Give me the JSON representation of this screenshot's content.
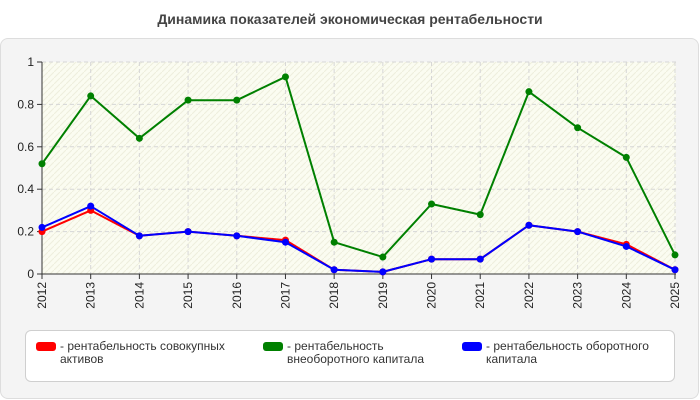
{
  "chart_data": {
    "type": "line",
    "title": "Динамика показателей экономическая рентабельности",
    "xlabel": "",
    "ylabel": "",
    "categories": [
      "2012",
      "2013",
      "2014",
      "2015",
      "2016",
      "2017",
      "2018",
      "2019",
      "2020",
      "2021",
      "2022",
      "2023",
      "2024",
      "2025"
    ],
    "ylim": [
      0,
      1
    ],
    "yticks": [
      "0",
      "0.2",
      "0.4",
      "0.6",
      "0.8",
      "1"
    ],
    "grid": true,
    "legend_position": "bottom",
    "series": [
      {
        "name": "рентабельность совокупных активов",
        "color": "#ff0000",
        "values": [
          0.2,
          0.3,
          0.18,
          0.2,
          0.18,
          0.16,
          0.02,
          0.01,
          0.07,
          0.07,
          0.23,
          0.2,
          0.14,
          0.02
        ]
      },
      {
        "name": "рентабельность внеоборотного капитала",
        "color": "#008000",
        "values": [
          0.52,
          0.84,
          0.64,
          0.82,
          0.82,
          0.93,
          0.15,
          0.08,
          0.33,
          0.28,
          0.86,
          0.69,
          0.55,
          0.09
        ]
      },
      {
        "name": "рентабельность оборотного капитала",
        "color": "#0000ff",
        "values": [
          0.22,
          0.32,
          0.18,
          0.2,
          0.18,
          0.15,
          0.02,
          0.01,
          0.07,
          0.07,
          0.23,
          0.2,
          0.13,
          0.02
        ]
      }
    ]
  },
  "legend": {
    "dash": "-",
    "items": [
      {
        "label_line1": "рентабельность совокупных",
        "label_line2": "активов"
      },
      {
        "label_line1": "рентабельность",
        "label_line2": "внеоборотного капитала"
      },
      {
        "label_line1": "рентабельность оборотного",
        "label_line2": "капитала"
      }
    ]
  }
}
